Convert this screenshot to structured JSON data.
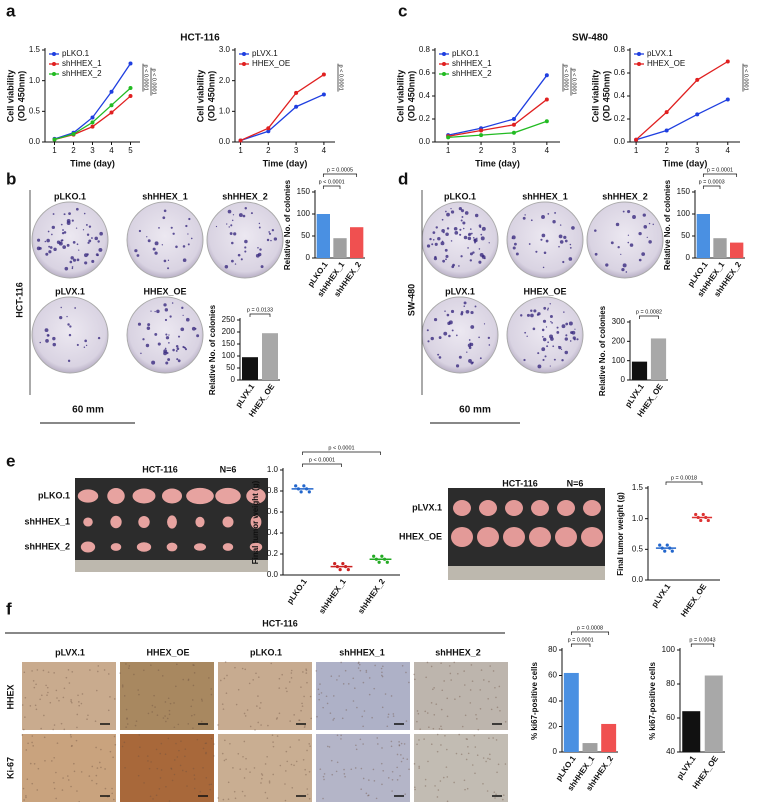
{
  "figure": {
    "panels": [
      "a",
      "b",
      "c",
      "d",
      "e",
      "f"
    ],
    "b": {
      "plates": [
        "pLKO.1",
        "shHHEX_1",
        "shHHEX_2",
        "pLVX.1",
        "HHEX_OE"
      ],
      "cell_line": "HCT-116",
      "scale": "60 mm"
    },
    "d": {
      "plates": [
        "pLKO.1",
        "shHHEX_1",
        "shHHEX_2",
        "pLVX.1",
        "HHEX_OE"
      ],
      "cell_line": "SW-480",
      "scale": "60 mm"
    },
    "e": {
      "left": {
        "cell_line": "HCT-116",
        "n": "N=6",
        "rows": [
          "pLKO.1",
          "shHHEX_1",
          "shHHEX_2"
        ]
      },
      "right": {
        "cell_line": "HCT-116",
        "n": "N=6",
        "rows": [
          "pLVX.1",
          "HHEX_OE"
        ]
      }
    },
    "f": {
      "cell_line": "HCT-116",
      "columns": [
        "pLVX.1",
        "HHEX_OE",
        "pLKO.1",
        "shHHEX_1",
        "shHHEX_2"
      ],
      "rows": [
        "HHEX",
        "Ki-67"
      ]
    }
  },
  "chart_data": [
    {
      "type": "line",
      "title": "HCT-116",
      "xlabel": "Time (day)",
      "ylabel": [
        "Cell viability",
        "(OD 450nm)"
      ],
      "x": [
        1,
        2,
        3,
        4,
        5
      ],
      "xlim": [
        0.5,
        5.5
      ],
      "xticks": [
        1,
        2,
        3,
        4,
        5
      ],
      "ylim": [
        0,
        1.5
      ],
      "yticks": [
        {
          "value": 0,
          "label": "0.0"
        },
        0.5,
        {
          "value": 1,
          "label": "1.0"
        },
        1.5
      ],
      "series": [
        {
          "name": "pLKO.1",
          "color": "#1f3fe0",
          "values": [
            0.05,
            0.15,
            0.4,
            0.82,
            1.28
          ]
        },
        {
          "name": "shHHEX_1",
          "color": "#e02020",
          "values": [
            0.04,
            0.12,
            0.25,
            0.48,
            0.75
          ]
        },
        {
          "name": "shHHEX_2",
          "color": "#22bb22",
          "values": [
            0.04,
            0.13,
            0.32,
            0.6,
            0.88
          ]
        }
      ],
      "annotations": [
        "p < 0.0001",
        "p < 0.0001"
      ]
    },
    {
      "type": "line",
      "xlabel": "Time (day)",
      "ylabel": [
        "Cell viability",
        "(OD 450nm)"
      ],
      "x": [
        1,
        2,
        3,
        4
      ],
      "xlim": [
        0.8,
        4.4
      ],
      "xticks": [
        1,
        2,
        3,
        4
      ],
      "ylim": [
        0,
        3
      ],
      "yticks": [
        {
          "value": 0,
          "label": "0.0"
        },
        {
          "value": 1,
          "label": "1.0"
        },
        {
          "value": 2,
          "label": "2.0"
        },
        {
          "value": 3,
          "label": "3.0"
        }
      ],
      "series": [
        {
          "name": "pLVX.1",
          "color": "#1f3fe0",
          "values": [
            0.05,
            0.35,
            1.15,
            1.55
          ]
        },
        {
          "name": "HHEX_OE",
          "color": "#e02020",
          "values": [
            0.05,
            0.45,
            1.6,
            2.2
          ]
        }
      ],
      "annotations": [
        "p < 0.0001"
      ]
    },
    {
      "type": "line",
      "title": "SW-480",
      "xlabel": "Time (day)",
      "ylabel": [
        "Cell viability",
        "(OD 450nm)"
      ],
      "x": [
        1,
        2,
        3,
        4
      ],
      "xlim": [
        0.6,
        4.4
      ],
      "xticks": [
        1,
        2,
        3,
        4
      ],
      "ylim": [
        0,
        0.8
      ],
      "yticks": [
        {
          "value": 0,
          "label": "0.0"
        },
        0.2,
        0.4,
        0.6,
        0.8
      ],
      "series": [
        {
          "name": "pLKO.1",
          "color": "#1f3fe0",
          "values": [
            0.06,
            0.12,
            0.2,
            0.58
          ]
        },
        {
          "name": "shHHEX_1",
          "color": "#e02020",
          "values": [
            0.05,
            0.1,
            0.15,
            0.37
          ]
        },
        {
          "name": "shHHEX_2",
          "color": "#22bb22",
          "values": [
            0.04,
            0.06,
            0.08,
            0.18
          ]
        }
      ],
      "annotations": [
        "p < 0.0001",
        "p < 0.0001"
      ]
    },
    {
      "type": "line",
      "xlabel": "Time (day)",
      "ylabel": [
        "Cell viability",
        "(OD 450nm)"
      ],
      "x": [
        1,
        2,
        3,
        4
      ],
      "xlim": [
        0.8,
        4.4
      ],
      "xticks": [
        1,
        2,
        3,
        4
      ],
      "ylim": [
        0,
        0.8
      ],
      "yticks": [
        {
          "value": 0,
          "label": "0.0"
        },
        0.2,
        0.4,
        0.6,
        0.8
      ],
      "series": [
        {
          "name": "pLVX.1",
          "color": "#1f3fe0",
          "values": [
            0.02,
            0.1,
            0.24,
            0.37
          ]
        },
        {
          "name": "HHEX_OE",
          "color": "#e02020",
          "values": [
            0.02,
            0.26,
            0.54,
            0.7
          ]
        }
      ],
      "annotations": [
        "p < 0.0001"
      ]
    },
    {
      "type": "bar",
      "ylabel": "Relative No. of colonies",
      "categories": [
        "pLKO.1",
        "shHHEX_1",
        "shHHEX_2"
      ],
      "values": [
        100,
        45,
        70
      ],
      "colors": [
        "#4a90e2",
        "#a0a0a0",
        "#f05050"
      ],
      "ylim": [
        0,
        150
      ],
      "yticks": [
        0,
        50,
        100,
        150
      ],
      "annotations": [
        "p < 0.0001",
        "p = 0.0005"
      ]
    },
    {
      "type": "bar",
      "ylabel": "Relative No. of colonies",
      "categories": [
        "pLVX.1",
        "HHEX_OE"
      ],
      "values": [
        95,
        195
      ],
      "colors": [
        "#111111",
        "#a8a8a8"
      ],
      "ylim": [
        0,
        250
      ],
      "yticks": [
        0,
        50,
        100,
        150,
        200,
        250
      ],
      "annotations": [
        "p = 0.0133"
      ]
    },
    {
      "type": "bar",
      "ylabel": "Relative No. of colonies",
      "categories": [
        "pLKO.1",
        "shHHEX_1",
        "shHHEX_2"
      ],
      "values": [
        100,
        45,
        35
      ],
      "colors": [
        "#4a90e2",
        "#a0a0a0",
        "#f05050"
      ],
      "ylim": [
        0,
        150
      ],
      "yticks": [
        0,
        50,
        100,
        150
      ],
      "annotations": [
        "p = 0.0003",
        "p = 0.0001"
      ]
    },
    {
      "type": "bar",
      "ylabel": "Relative No. of colonies",
      "categories": [
        "pLVX.1",
        "HHEX_OE"
      ],
      "values": [
        95,
        215
      ],
      "colors": [
        "#111111",
        "#a8a8a8"
      ],
      "ylim": [
        0,
        300
      ],
      "yticks": [
        0,
        100,
        200,
        300
      ],
      "annotations": [
        "p = 0.0082"
      ]
    },
    {
      "type": "dot",
      "ylabel": "Final tumor weight (g)",
      "categories": [
        "pLKO.1",
        "shHHEX_1",
        "shHHEX_2"
      ],
      "values": [
        0.82,
        0.08,
        0.15
      ],
      "colors": [
        "#2266cc",
        "#cc2222",
        "#22aa22"
      ],
      "ylim": [
        0,
        1
      ],
      "yticks": [
        {
          "value": 0,
          "label": "0.0"
        },
        0.2,
        0.4,
        0.6,
        0.8,
        {
          "value": 1,
          "label": "1.0"
        }
      ],
      "annotations": [
        "p < 0.0001",
        "p < 0.0001"
      ]
    },
    {
      "type": "dot",
      "ylabel": "Final tumor weight (g)",
      "categories": [
        "pLVX.1",
        "HHEX_OE"
      ],
      "values": [
        0.52,
        1.02
      ],
      "colors": [
        "#2266cc",
        "#dd3333"
      ],
      "ylim": [
        0,
        1.5
      ],
      "yticks": [
        {
          "value": 0,
          "label": "0.0"
        },
        0.5,
        {
          "value": 1,
          "label": "1.0"
        },
        1.5
      ],
      "annotations": [
        "p = 0.0018"
      ]
    },
    {
      "type": "bar",
      "ylabel": "% ki67-positive cells",
      "categories": [
        "pLKO.1",
        "shHHEX_1",
        "shHHEX_2"
      ],
      "values": [
        62,
        7,
        22
      ],
      "colors": [
        "#4a90e2",
        "#a0a0a0",
        "#f05050"
      ],
      "ylim": [
        0,
        80
      ],
      "yticks": [
        0,
        20,
        40,
        60,
        80
      ],
      "annotations": [
        "p = 0.0001",
        "p = 0.0008"
      ]
    },
    {
      "type": "bar",
      "ylabel": "% ki67-positive cells",
      "categories": [
        "pLVX.1",
        "HHEX_OE"
      ],
      "values": [
        64,
        85
      ],
      "colors": [
        "#111111",
        "#a8a8a8"
      ],
      "ylim": [
        40,
        100
      ],
      "yticks": [
        40,
        60,
        80,
        100
      ],
      "annotations": [
        "p = 0.0043"
      ]
    }
  ]
}
